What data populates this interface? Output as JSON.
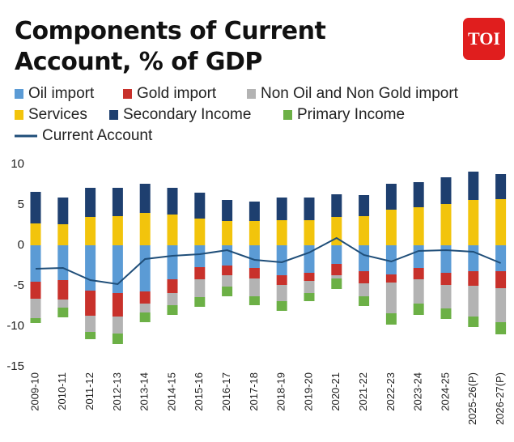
{
  "logo": "TOI",
  "chart_data": {
    "type": "bar",
    "stacked": true,
    "title": "Components of Current Account, % of GDP",
    "categories": [
      "2009-10",
      "2010-11",
      "2011-12",
      "2012-13",
      "2013-14",
      "2014-15",
      "2015-16",
      "2016-17",
      "2017-18",
      "2018-19",
      "2019-20",
      "2020-21",
      "2021-22",
      "2022-23",
      "2023-24",
      "2024-25",
      "2025-26(P)",
      "2026-27(P)"
    ],
    "ylim": [
      -15,
      10
    ],
    "yticks": [
      10,
      5,
      0,
      -5,
      -10,
      -15
    ],
    "grid": false,
    "series": [
      {
        "name": "Oil import",
        "color": "#5b9bd5",
        "values": [
          -4.5,
          -4.3,
          -5.6,
          -5.9,
          -5.7,
          -4.2,
          -2.7,
          -2.5,
          -2.8,
          -3.7,
          -3.4,
          -2.3,
          -3.2,
          -3.6,
          -2.8,
          -3.4,
          -3.2,
          -3.2
        ]
      },
      {
        "name": "Gold import",
        "color": "#c8312b",
        "values": [
          -2.1,
          -2.4,
          -3.1,
          -2.9,
          -1.5,
          -1.7,
          -1.5,
          -1.2,
          -1.3,
          -1.2,
          -1.0,
          -1.4,
          -1.5,
          -1.0,
          -1.4,
          -1.5,
          -1.8,
          -2.1
        ]
      },
      {
        "name": "Non Oil and Non Gold import",
        "color": "#b3b3b3",
        "values": [
          -2.4,
          -1.0,
          -2.0,
          -2.1,
          -1.1,
          -1.5,
          -2.2,
          -1.4,
          -2.2,
          -2.0,
          -1.5,
          -0.4,
          -1.6,
          -3.8,
          -3.0,
          -2.9,
          -3.8,
          -4.2
        ]
      },
      {
        "name": "Services",
        "color": "#f2c40c",
        "values": [
          2.7,
          2.6,
          3.5,
          3.6,
          4.0,
          3.8,
          3.3,
          3.0,
          3.0,
          3.1,
          3.1,
          3.5,
          3.6,
          4.4,
          4.7,
          5.1,
          5.6,
          5.7
        ]
      },
      {
        "name": "Secondary Income",
        "color": "#1e3f6f",
        "values": [
          3.9,
          3.3,
          3.6,
          3.5,
          3.6,
          3.3,
          3.2,
          2.6,
          2.4,
          2.8,
          2.8,
          2.8,
          2.6,
          3.2,
          3.1,
          3.3,
          3.5,
          3.1
        ]
      },
      {
        "name": "Primary Income",
        "color": "#6cb046",
        "values": [
          -0.6,
          -1.2,
          -0.9,
          -1.3,
          -1.2,
          -1.2,
          -1.2,
          -1.2,
          -1.1,
          -1.2,
          -1.0,
          -1.3,
          -1.2,
          -1.4,
          -1.4,
          -1.3,
          -1.3,
          -1.5
        ]
      },
      {
        "name": "Current Account",
        "color": "#1f4e79",
        "type": "line",
        "values": [
          -2.9,
          -2.8,
          -4.3,
          -4.8,
          -1.7,
          -1.3,
          -1.1,
          -0.6,
          -1.8,
          -2.1,
          -0.9,
          0.9,
          -1.2,
          -2.0,
          -0.7,
          -0.6,
          -0.8,
          -2.2
        ]
      }
    ]
  }
}
